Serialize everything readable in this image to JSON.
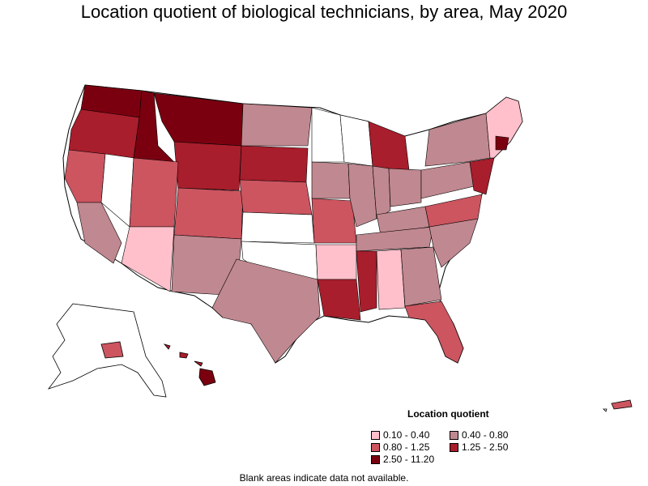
{
  "title": "Location quotient of biological technicians, by area, May 2020",
  "legend": {
    "title": "Location quotient",
    "items": [
      {
        "label": "0.10 - 0.40",
        "color": "#ffc0cb"
      },
      {
        "label": "0.40 - 0.80",
        "color": "#c08890"
      },
      {
        "label": "0.80 - 1.25",
        "color": "#cc5560"
      },
      {
        "label": "1.25 - 2.50",
        "color": "#a81e2c"
      },
      {
        "label": "2.50 - 11.20",
        "color": "#7a0010"
      }
    ]
  },
  "footnote": "Blank areas indicate data not available."
}
